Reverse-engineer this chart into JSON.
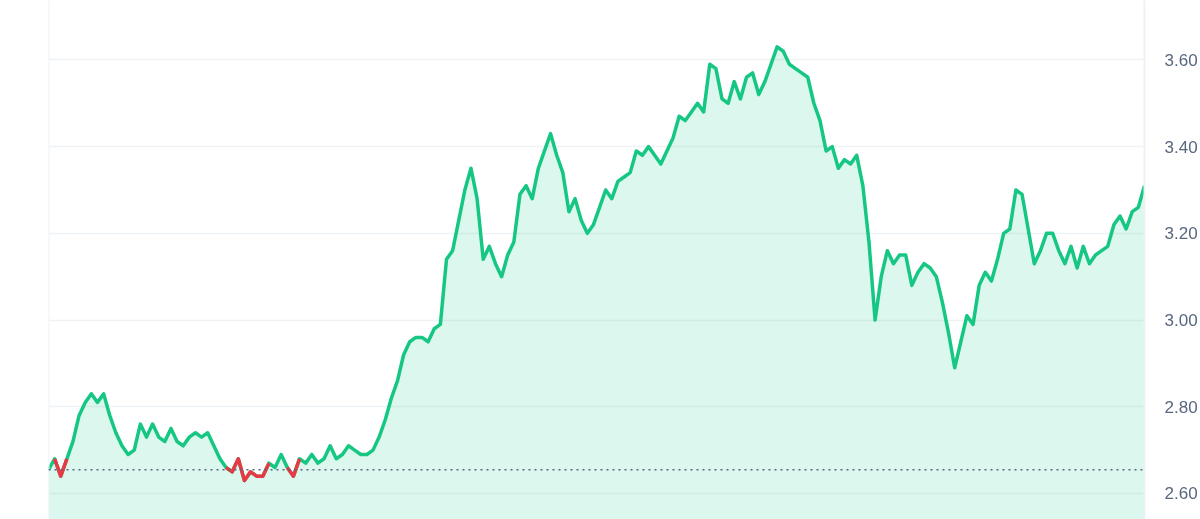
{
  "chart_data": {
    "type": "area",
    "categories": [
      null,
      null,
      null,
      null,
      null,
      null,
      null,
      null,
      null,
      null,
      null,
      null,
      null,
      null,
      null,
      null,
      null,
      null,
      null,
      null,
      null,
      null,
      null,
      null,
      null,
      null,
      null,
      null,
      null,
      null,
      null,
      null,
      null,
      null,
      null,
      null,
      null,
      null,
      null,
      null,
      null,
      null,
      null,
      null,
      null,
      null,
      null,
      null,
      null,
      null,
      null,
      null,
      null,
      null,
      null,
      null,
      null,
      null,
      null,
      null,
      null,
      null,
      null,
      null,
      null,
      null,
      null,
      null,
      null,
      null,
      null,
      null,
      null,
      null,
      null,
      null,
      null,
      null,
      null,
      null,
      null,
      null,
      null,
      null,
      null,
      null,
      null,
      null,
      null,
      null,
      null,
      null,
      null,
      null,
      null,
      null,
      null,
      null,
      null,
      null,
      null,
      null,
      null,
      null,
      null,
      null,
      null,
      null,
      null,
      null,
      null,
      null,
      null,
      null,
      null,
      null,
      null,
      null,
      null,
      null,
      null,
      null,
      null,
      null,
      null,
      null,
      null,
      null,
      null,
      null,
      null,
      null,
      null,
      null,
      null,
      null,
      null,
      null,
      null,
      null,
      null,
      null,
      null,
      null,
      null,
      null,
      null,
      null,
      null,
      null,
      null,
      null,
      null,
      null,
      null,
      null,
      null,
      null,
      null,
      null,
      null,
      null,
      null,
      null,
      null,
      null,
      null,
      null,
      null,
      null,
      null,
      null,
      null,
      null,
      null,
      null,
      null,
      null,
      null,
      null
    ],
    "series": [
      {
        "color": "#16c784",
        "values": [
          2.655,
          2.68,
          2.64,
          2.68,
          2.72,
          2.78,
          2.81,
          2.83,
          2.81,
          2.83,
          2.78,
          2.74,
          2.71,
          2.69,
          2.7,
          2.76,
          2.73,
          2.76,
          2.73,
          2.72,
          2.75,
          2.72,
          2.71,
          2.73,
          2.74,
          2.73,
          2.74,
          2.71,
          2.68,
          2.66,
          2.65,
          2.68,
          2.63,
          2.65,
          2.64,
          2.64,
          2.67,
          2.66,
          2.69,
          2.66,
          2.64,
          2.68,
          2.67,
          2.69,
          2.67,
          2.68,
          2.71,
          2.68,
          2.69,
          2.71,
          2.7,
          2.69,
          2.69,
          2.7,
          2.73,
          2.77,
          2.82,
          2.86,
          2.92,
          2.95,
          2.96,
          2.96,
          2.95,
          2.98,
          2.99,
          3.14,
          3.16,
          3.23,
          3.3,
          3.35,
          3.28,
          3.14,
          3.17,
          3.13,
          3.1,
          3.15,
          3.18,
          3.29,
          3.31,
          3.28,
          3.35,
          3.39,
          3.43,
          3.38,
          3.34,
          3.25,
          3.28,
          3.23,
          3.2,
          3.22,
          3.26,
          3.3,
          3.28,
          3.32,
          3.33,
          3.34,
          3.39,
          3.38,
          3.4,
          3.38,
          3.36,
          3.39,
          3.42,
          3.47,
          3.46,
          3.48,
          3.5,
          3.48,
          3.59,
          3.58,
          3.51,
          3.5,
          3.55,
          3.51,
          3.56,
          3.57,
          3.52,
          3.55,
          3.59,
          3.63,
          3.62,
          3.59,
          3.58,
          3.57,
          3.56,
          3.5,
          3.46,
          3.39,
          3.4,
          3.35,
          3.37,
          3.36,
          3.38,
          3.31,
          3.18,
          3.0,
          3.1,
          3.16,
          3.13,
          3.15,
          3.15,
          3.08,
          3.11,
          3.13,
          3.12,
          3.1,
          3.04,
          2.97,
          2.89,
          2.95,
          3.01,
          2.99,
          3.08,
          3.11,
          3.09,
          3.14,
          3.2,
          3.21,
          3.3,
          3.29,
          3.21,
          3.13,
          3.16,
          3.2,
          3.2,
          3.16,
          3.13,
          3.17,
          3.12,
          3.17,
          3.13,
          3.15,
          3.16,
          3.17,
          3.22,
          3.24,
          3.21,
          3.25,
          3.26,
          3.31
        ]
      },
      {
        "color": "#ea3943",
        "type": "line",
        "values": [
          null,
          2.68,
          2.64,
          2.68,
          null,
          null,
          null,
          null,
          null,
          null,
          null,
          null,
          null,
          null,
          null,
          null,
          null,
          null,
          null,
          null,
          null,
          null,
          null,
          null,
          null,
          null,
          null,
          null,
          null,
          2.66,
          2.65,
          2.68,
          2.63,
          2.65,
          2.64,
          2.64,
          2.67,
          null,
          null,
          2.66,
          2.64,
          2.68,
          null,
          null,
          null,
          null,
          null,
          null,
          null,
          null,
          null,
          null,
          null,
          null,
          null,
          null,
          null,
          null,
          null,
          null,
          null,
          null,
          null,
          null,
          null,
          null,
          null,
          null,
          null,
          null,
          null,
          null,
          null,
          null,
          null,
          null,
          null,
          null,
          null,
          null,
          null,
          null,
          null,
          null,
          null,
          null,
          null,
          null,
          null,
          null,
          null,
          null,
          null,
          null,
          null,
          null,
          null,
          null,
          null,
          null,
          null,
          null,
          null,
          null,
          null,
          null,
          null,
          null,
          null,
          null,
          null,
          null,
          null,
          null,
          null,
          null,
          null,
          null,
          null,
          null,
          null,
          null,
          null,
          null,
          null,
          null,
          null,
          null,
          null,
          null,
          null,
          null,
          null,
          null,
          null,
          null,
          null,
          null,
          null,
          null,
          null,
          null,
          null,
          null,
          null,
          null,
          null,
          null,
          null,
          null,
          null,
          null,
          null,
          null,
          null,
          null,
          null,
          null,
          null,
          null,
          null,
          null,
          null,
          null,
          null,
          null,
          null,
          null,
          null,
          null,
          null,
          null,
          null,
          null,
          null,
          null,
          null,
          null,
          null,
          null
        ]
      }
    ],
    "ylim": [
      2.54,
      3.737
    ],
    "yticks": [
      {
        "value": 2.6,
        "label": "2.60"
      },
      {
        "value": 2.8,
        "label": "2.80"
      },
      {
        "value": 3.0,
        "label": "3.00"
      },
      {
        "value": 3.2,
        "label": "3.20"
      },
      {
        "value": 3.4,
        "label": "3.40"
      },
      {
        "value": 3.6,
        "label": "3.60"
      }
    ],
    "grid": "y",
    "tick_labels": "y",
    "marker": "none",
    "line_style": "solid",
    "ref_lines": [
      {
        "axis": "y",
        "value": 2.655,
        "color": "#58667e",
        "line_style": "dotted"
      }
    ]
  }
}
